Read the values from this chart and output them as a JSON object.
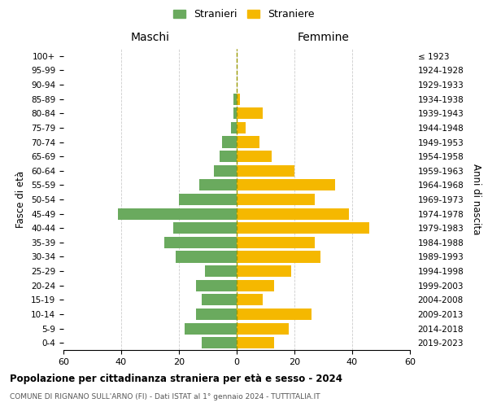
{
  "age_groups": [
    "100+",
    "95-99",
    "90-94",
    "85-89",
    "80-84",
    "75-79",
    "70-74",
    "65-69",
    "60-64",
    "55-59",
    "50-54",
    "45-49",
    "40-44",
    "35-39",
    "30-34",
    "25-29",
    "20-24",
    "15-19",
    "10-14",
    "5-9",
    "0-4"
  ],
  "birth_years": [
    "≤ 1923",
    "1924-1928",
    "1929-1933",
    "1934-1938",
    "1939-1943",
    "1944-1948",
    "1949-1953",
    "1954-1958",
    "1959-1963",
    "1964-1968",
    "1969-1973",
    "1974-1978",
    "1979-1983",
    "1984-1988",
    "1989-1993",
    "1994-1998",
    "1999-2003",
    "2004-2008",
    "2009-2013",
    "2014-2018",
    "2019-2023"
  ],
  "maschi": [
    0,
    0,
    0,
    1,
    1,
    2,
    5,
    6,
    8,
    13,
    20,
    41,
    22,
    25,
    21,
    11,
    14,
    12,
    14,
    18,
    12
  ],
  "femmine": [
    0,
    0,
    0,
    1,
    9,
    3,
    8,
    12,
    20,
    34,
    27,
    39,
    46,
    27,
    29,
    19,
    13,
    9,
    26,
    18,
    13
  ],
  "color_maschi": "#6aaa5e",
  "color_femmine": "#f5b800",
  "color_dashed": "#999900",
  "title": "Popolazione per cittadinanza straniera per età e sesso - 2024",
  "subtitle": "COMUNE DI RIGNANO SULL'ARNO (FI) - Dati ISTAT al 1° gennaio 2024 - TUTTITALIA.IT",
  "ylabel_left": "Fasce di età",
  "ylabel_right": "Anni di nascita",
  "header_left": "Maschi",
  "header_right": "Femmine",
  "legend_maschi": "Stranieri",
  "legend_femmine": "Straniere",
  "xlim": 60,
  "figsize": [
    6.0,
    5.0
  ],
  "dpi": 100
}
